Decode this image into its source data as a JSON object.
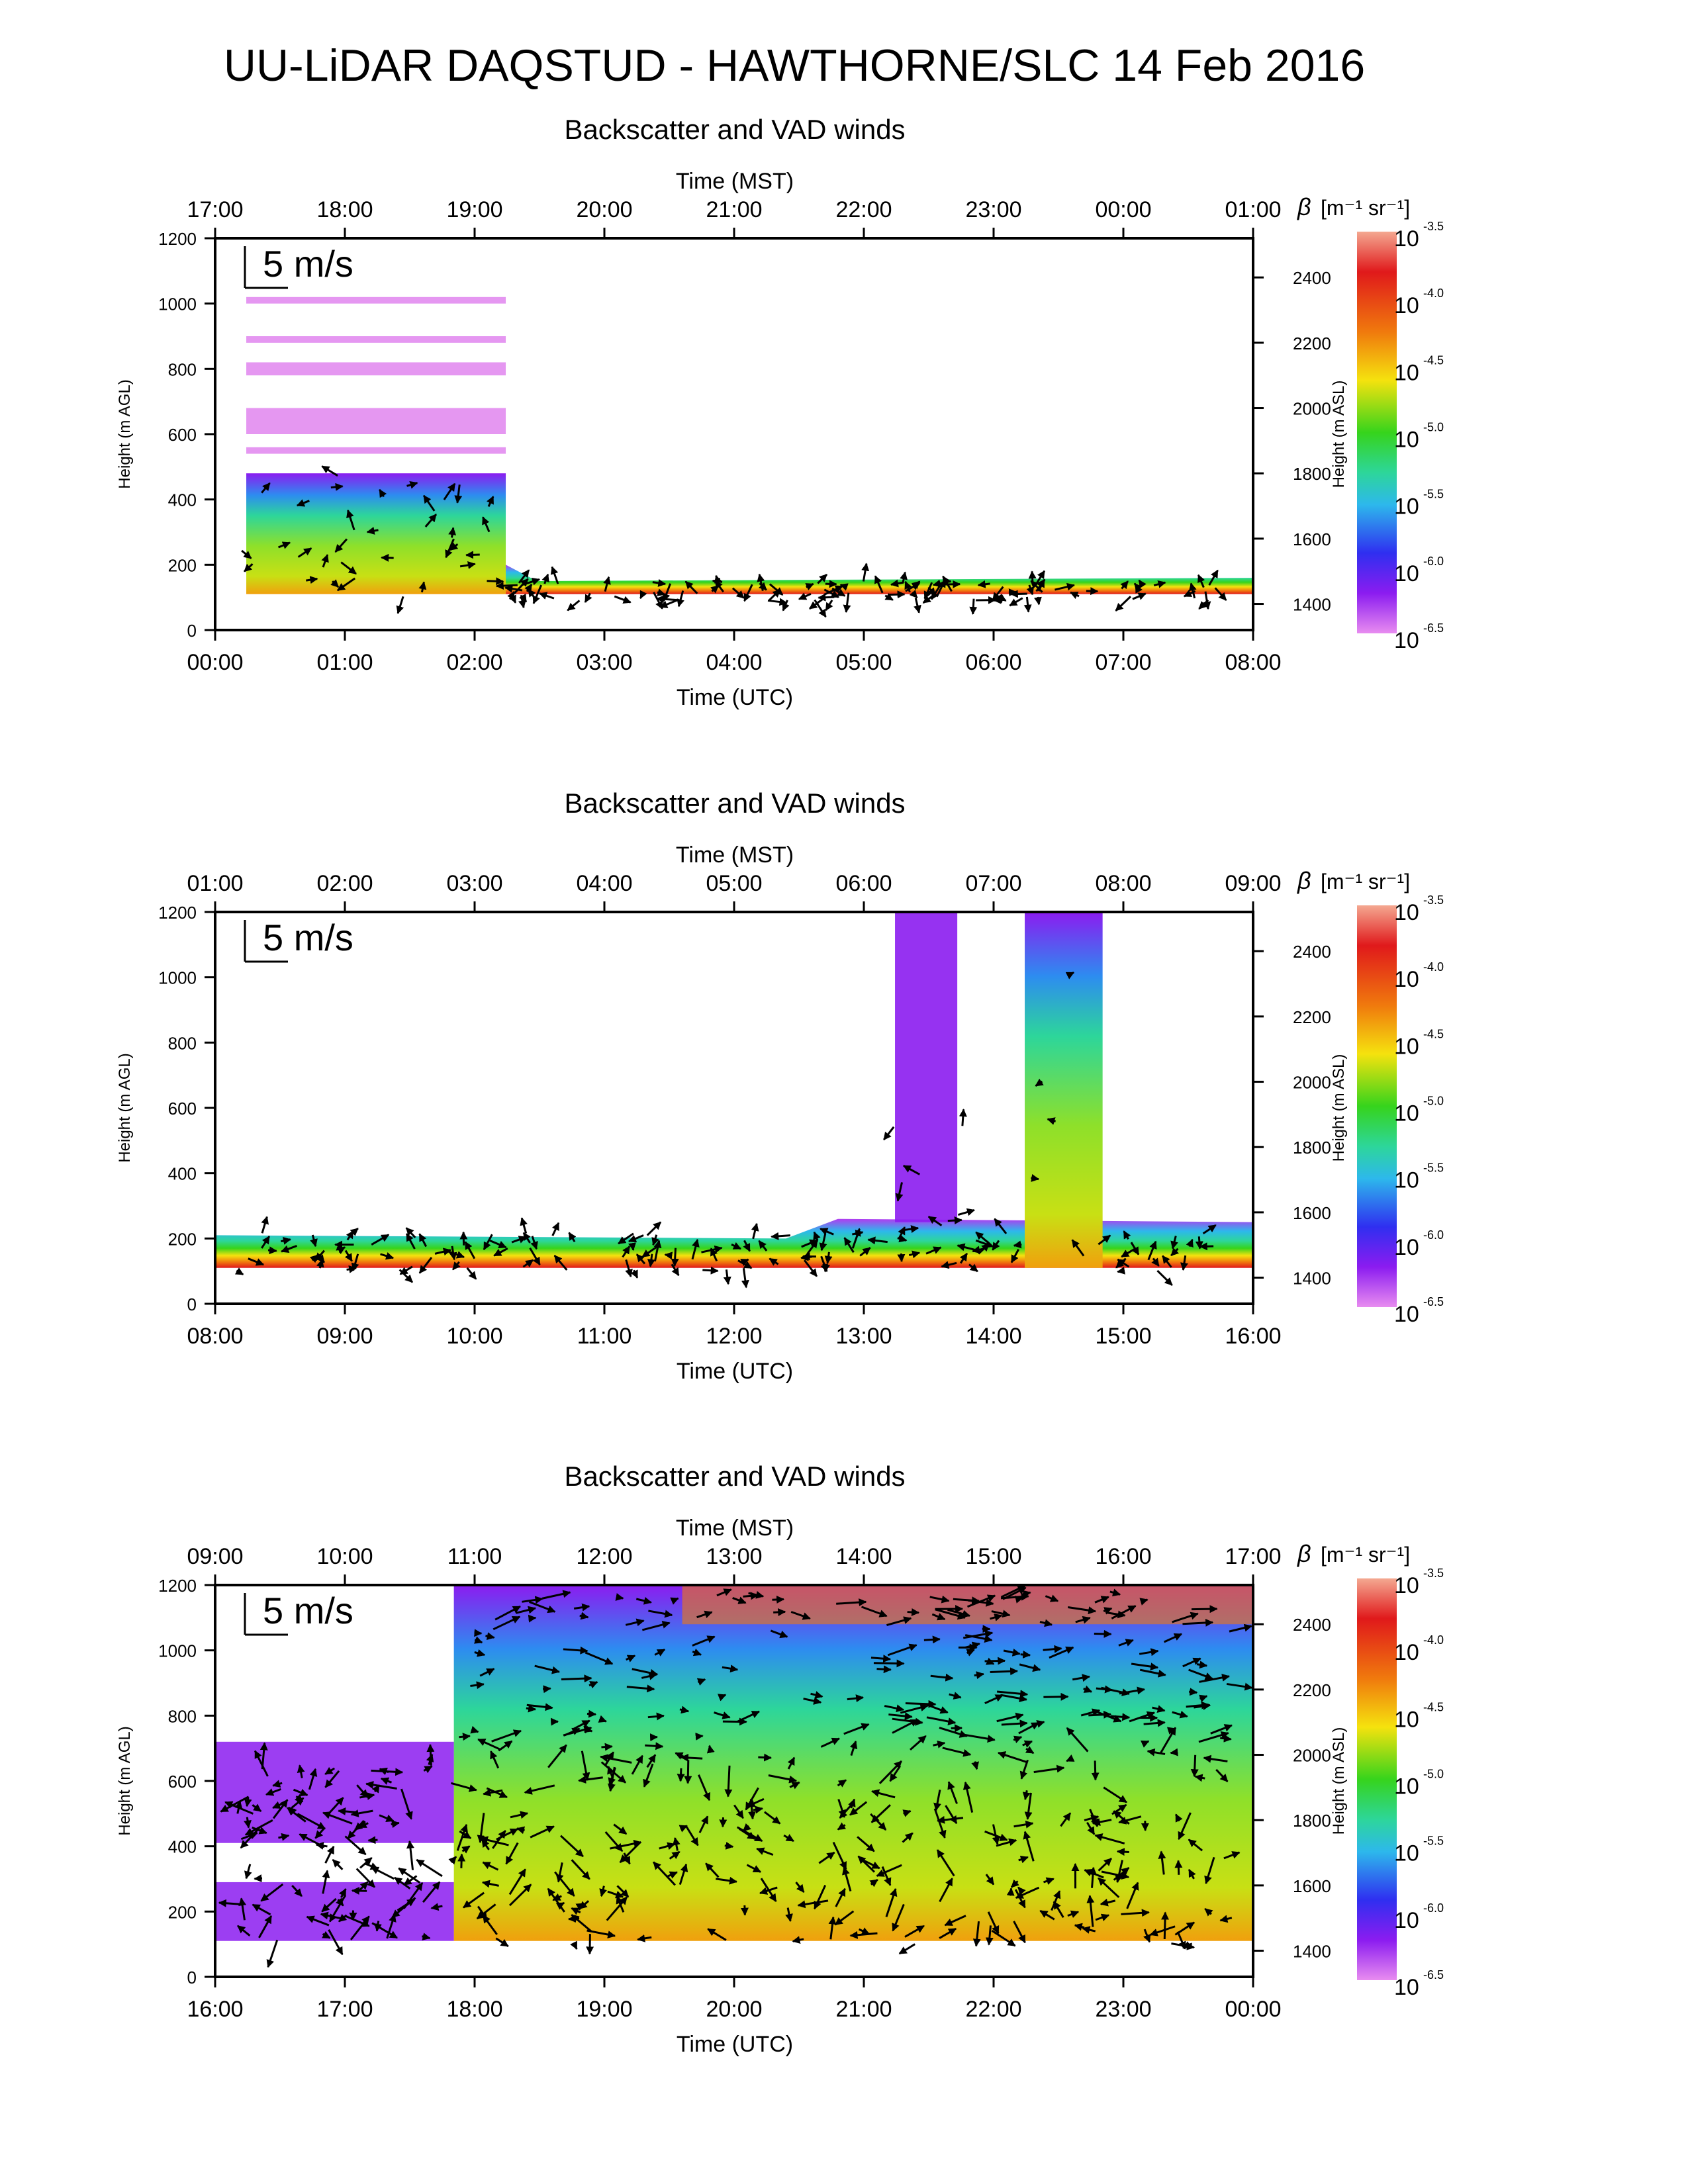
{
  "title": "UU-LiDAR DAQSTUD - HAWTHORNE/SLC 14 Feb 2016",
  "scale_label": "5 m/s",
  "colorbar": {
    "label_beta": "β",
    "label_units": "[m⁻¹ sr⁻¹]",
    "tick_base": "10",
    "tick_exponents": [
      "-3.5",
      "-4.0",
      "-4.5",
      "-5.0",
      "-5.5",
      "-6.0",
      "-6.5"
    ],
    "colors": [
      "#f4a891",
      "#e0191b",
      "#f07a0d",
      "#f5e20e",
      "#36d41c",
      "#2dd69a",
      "#2db8ec",
      "#2f2ff0",
      "#8b1cf0",
      "#e88cf0"
    ]
  },
  "chart_data": [
    {
      "type": "heatmap",
      "title": "Backscatter and VAD winds",
      "top_axis_label": "Time (MST)",
      "top_ticks": [
        "17:00",
        "18:00",
        "19:00",
        "20:00",
        "21:00",
        "22:00",
        "23:00",
        "00:00",
        "01:00"
      ],
      "bottom_axis_label": "Time (UTC)",
      "bottom_ticks": [
        "00:00",
        "01:00",
        "02:00",
        "03:00",
        "04:00",
        "05:00",
        "06:00",
        "07:00",
        "08:00"
      ],
      "ylabel": "Height (m AGL)",
      "y_ticks": [
        "0",
        "200",
        "400",
        "600",
        "800",
        "1000",
        "1200"
      ],
      "ylim": [
        0,
        1200
      ],
      "y2label": "Height (m ASL)",
      "y2_ticks": [
        "1400",
        "1600",
        "1800",
        "2000",
        "2200",
        "2400"
      ]
    },
    {
      "type": "heatmap",
      "title": "Backscatter and VAD winds",
      "top_axis_label": "Time (MST)",
      "top_ticks": [
        "01:00",
        "02:00",
        "03:00",
        "04:00",
        "05:00",
        "06:00",
        "07:00",
        "08:00",
        "09:00"
      ],
      "bottom_axis_label": "Time (UTC)",
      "bottom_ticks": [
        "08:00",
        "09:00",
        "10:00",
        "11:00",
        "12:00",
        "13:00",
        "14:00",
        "15:00",
        "16:00"
      ],
      "ylabel": "Height (m AGL)",
      "y_ticks": [
        "0",
        "200",
        "400",
        "600",
        "800",
        "1000",
        "1200"
      ],
      "ylim": [
        0,
        1200
      ],
      "y2label": "Height (m ASL)",
      "y2_ticks": [
        "1400",
        "1600",
        "1800",
        "2000",
        "2200",
        "2400"
      ]
    },
    {
      "type": "heatmap",
      "title": "Backscatter and VAD winds",
      "top_axis_label": "Time (MST)",
      "top_ticks": [
        "09:00",
        "10:00",
        "11:00",
        "12:00",
        "13:00",
        "14:00",
        "15:00",
        "16:00",
        "17:00"
      ],
      "bottom_axis_label": "Time (UTC)",
      "bottom_ticks": [
        "16:00",
        "17:00",
        "18:00",
        "19:00",
        "20:00",
        "21:00",
        "22:00",
        "23:00",
        "00:00"
      ],
      "ylabel": "Height (m AGL)",
      "y_ticks": [
        "0",
        "200",
        "400",
        "600",
        "800",
        "1000",
        "1200"
      ],
      "ylim": [
        0,
        1200
      ],
      "y2label": "Height (m ASL)",
      "y2_ticks": [
        "1400",
        "1600",
        "1800",
        "2000",
        "2200",
        "2400"
      ]
    }
  ]
}
